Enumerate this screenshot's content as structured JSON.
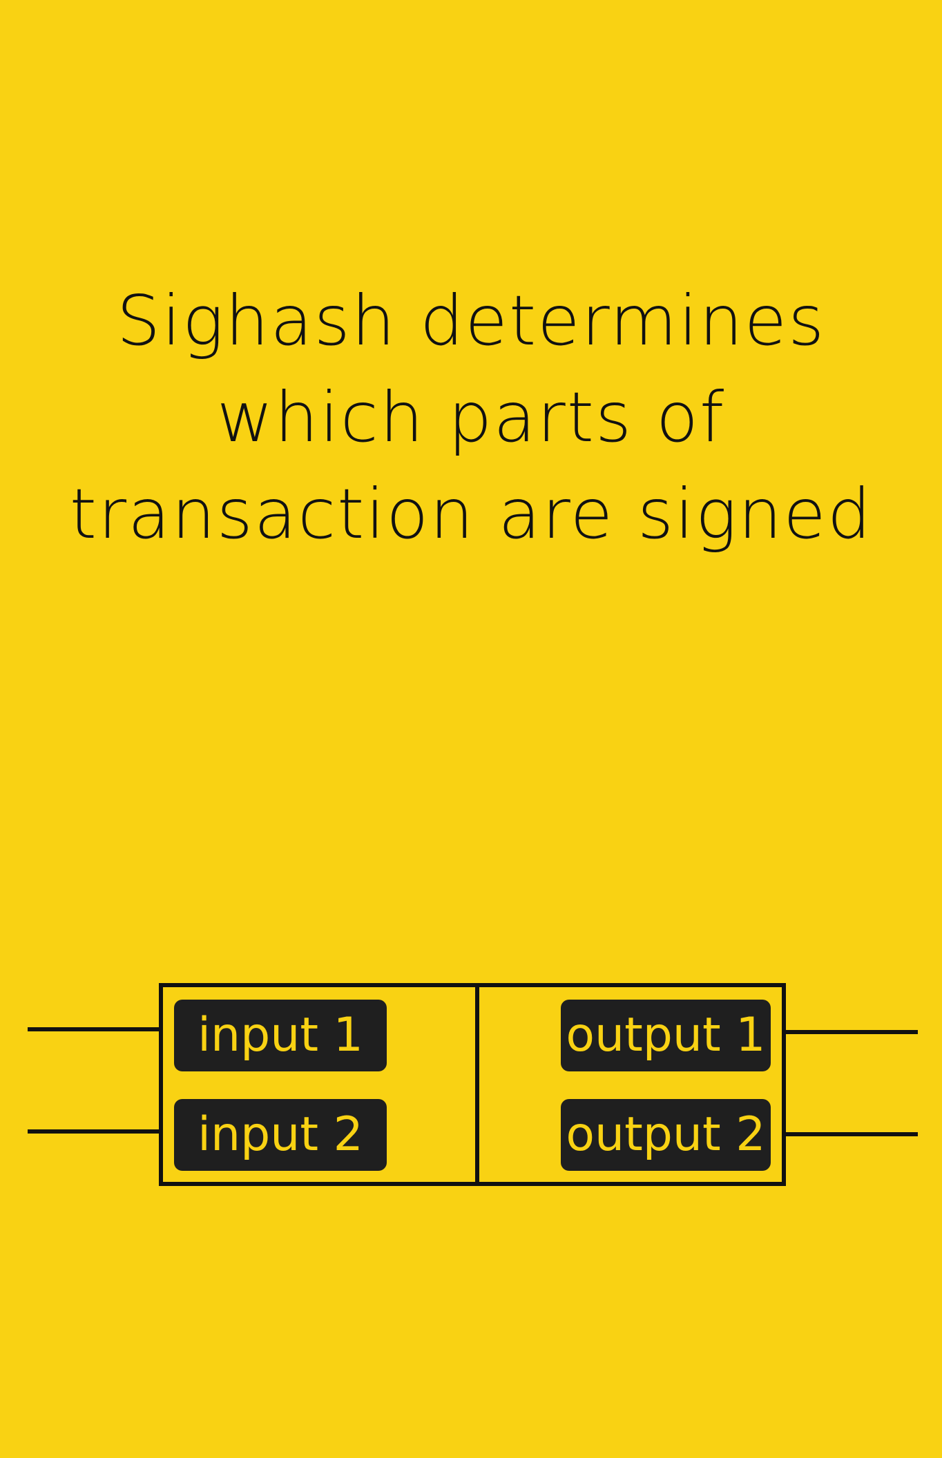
{
  "title": {
    "lines": [
      "Sighash determines",
      "which parts of",
      "transaction are signed"
    ]
  },
  "transaction": {
    "inputs": [
      "input 1",
      "input 2"
    ],
    "outputs": [
      "output 1",
      "output 2"
    ]
  },
  "colors": {
    "background": "#F9D213",
    "ink": "#111111",
    "pill_fill": "#1F1F1F",
    "pill_text": "#F9D213"
  }
}
